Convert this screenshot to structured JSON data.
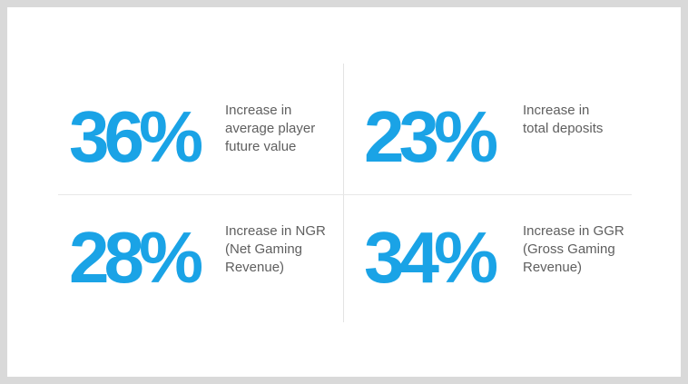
{
  "stats": [
    {
      "value": "36%",
      "description": "Increase in\naverage player\nfuture value"
    },
    {
      "value": "23%",
      "description": "Increase in\ntotal deposits"
    },
    {
      "value": "28%",
      "description": "Increase in NGR\n(Net Gaming\nRevenue)"
    },
    {
      "value": "34%",
      "description": "Increase in GGR\n(Gross Gaming\nRevenue)"
    }
  ],
  "colors": {
    "accent": "#1aa3e6",
    "text": "#5f5f5f",
    "background": "#d9d9d9",
    "card": "#ffffff"
  }
}
